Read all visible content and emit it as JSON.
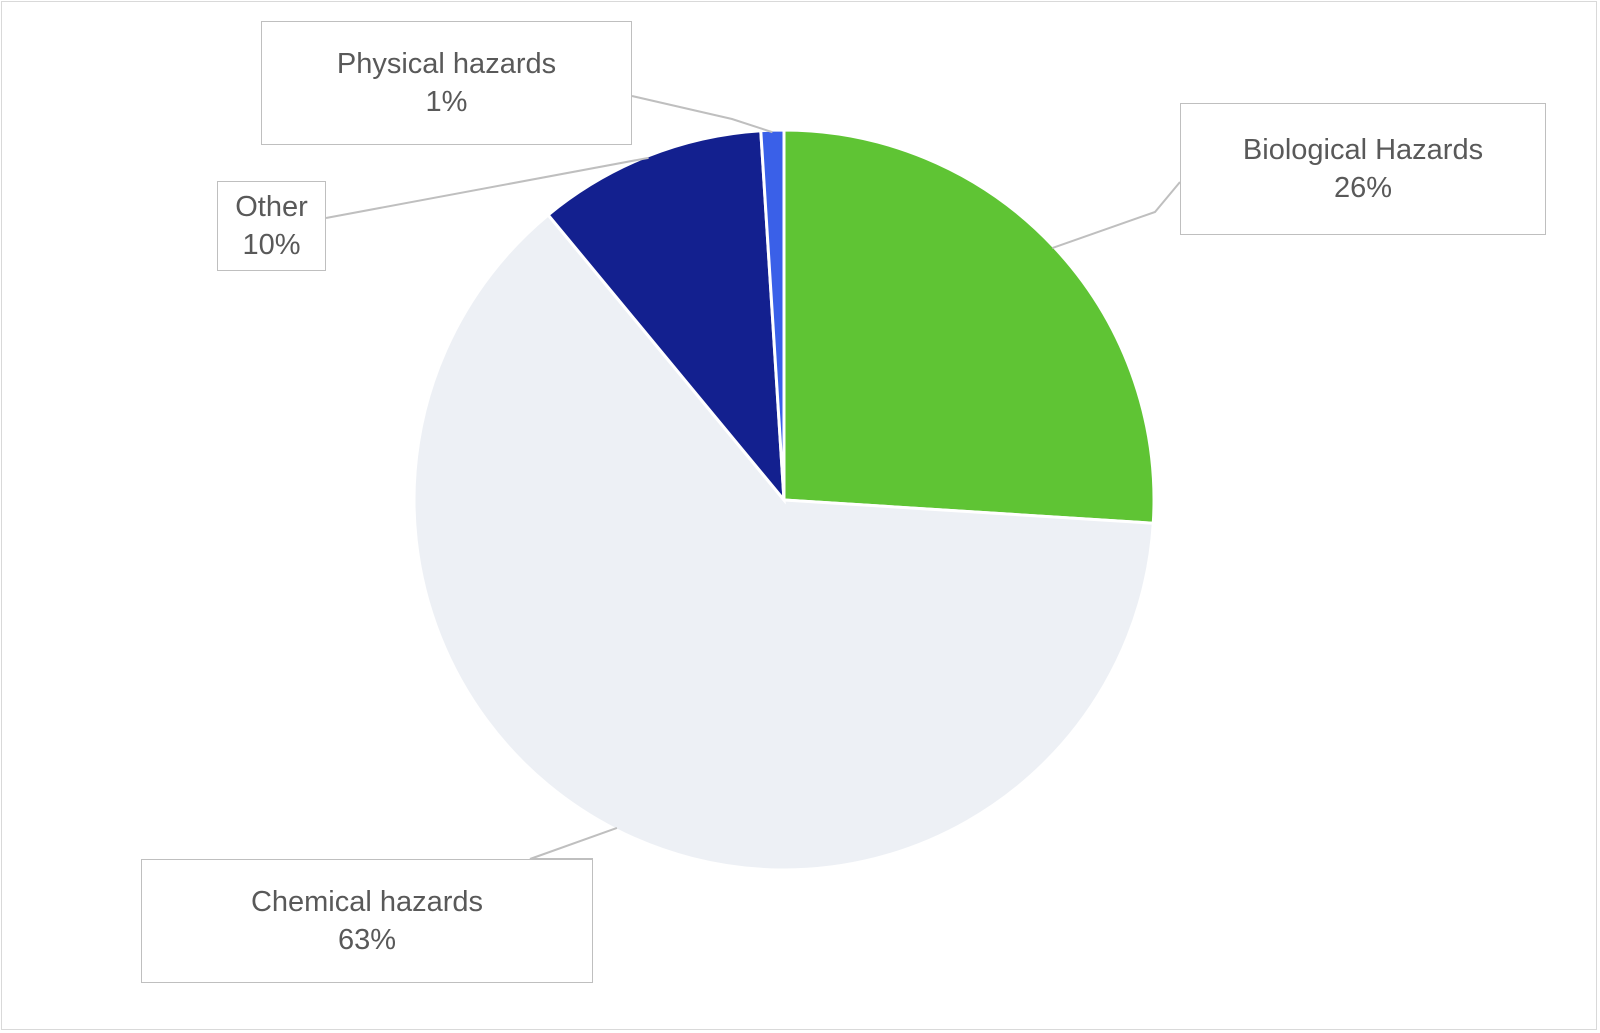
{
  "chart_data": {
    "type": "pie",
    "title": "",
    "start_angle_deg": 0,
    "direction": "clockwise",
    "slices": [
      {
        "label": "Biological Hazards",
        "value": 26,
        "value_label": "26%",
        "color": "#5fc434"
      },
      {
        "label": "Chemical hazards",
        "value": 63,
        "value_label": "63%",
        "color": "#edf0f5"
      },
      {
        "label": "Other",
        "value": 10,
        "value_label": "10%",
        "color": "#13208f"
      },
      {
        "label": "Physical hazards",
        "value": 1,
        "value_label": "1%",
        "color": "#3a60e8"
      }
    ],
    "legend": "none",
    "data_labels": "callouts"
  }
}
